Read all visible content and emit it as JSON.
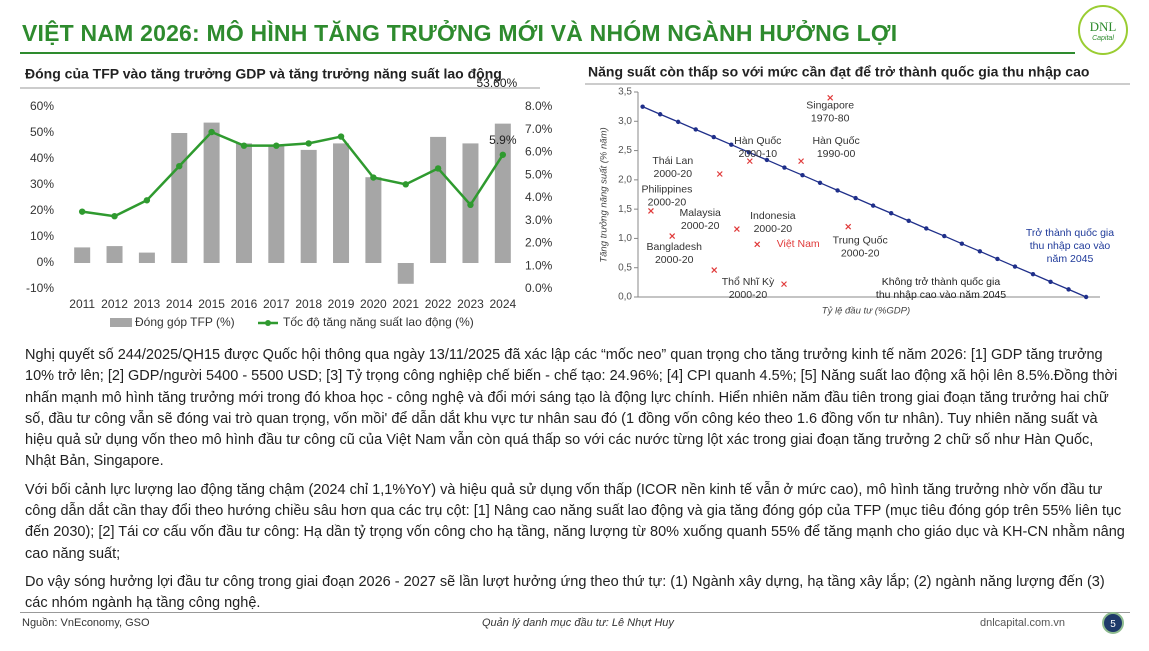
{
  "header": {
    "title": "VIỆT NAM 2026: MÔ HÌNH TĂNG TRƯỞNG MỚI VÀ NHÓM NGÀNH HƯỞNG LỢI",
    "logo": {
      "name": "DNL",
      "sub": "Capital"
    }
  },
  "chart_data": [
    {
      "type": "combo",
      "title": "Đóng của TFP vào tăng trưởng GDP và tăng trưởng năng suất lao động",
      "categories": [
        "2011",
        "2012",
        "2013",
        "2014",
        "2015",
        "2016",
        "2017",
        "2018",
        "2019",
        "2020",
        "2021",
        "2022",
        "2023",
        "2024"
      ],
      "series": [
        {
          "name": "Đóng góp TFP (%)",
          "type": "bar",
          "color": "#a6a6a6",
          "values": [
            6,
            6.5,
            4,
            50,
            54,
            46,
            45,
            43.5,
            46,
            33,
            -8,
            48.5,
            46,
            53.6
          ],
          "value_labels": [
            null,
            null,
            null,
            null,
            null,
            null,
            null,
            null,
            null,
            null,
            null,
            null,
            null,
            "53.60%"
          ]
        },
        {
          "name": "Tốc độ tăng năng suất lao động (%)",
          "type": "line",
          "axis": "y2",
          "color": "#2f9a2f",
          "values": [
            3.4,
            3.2,
            3.9,
            5.4,
            6.9,
            6.3,
            6.3,
            6.4,
            6.7,
            4.9,
            4.6,
            5.3,
            3.7,
            5.9
          ],
          "value_labels": [
            null,
            null,
            null,
            null,
            null,
            null,
            null,
            null,
            null,
            null,
            null,
            null,
            null,
            "5.9%"
          ]
        }
      ],
      "ylim": [
        -10,
        60
      ],
      "yticks": [
        {
          "value": -10,
          "label": "-10%"
        },
        {
          "value": 0,
          "label": "0%"
        },
        {
          "value": 10,
          "label": "10%"
        },
        {
          "value": 20,
          "label": "20%"
        },
        {
          "value": 30,
          "label": "30%"
        },
        {
          "value": 40,
          "label": "40%"
        },
        {
          "value": 50,
          "label": "50%"
        },
        {
          "value": 60,
          "label": "60%"
        }
      ],
      "y2lim": [
        0,
        8
      ],
      "y2ticks": [
        {
          "value": 0,
          "label": "0.0%"
        },
        {
          "value": 1,
          "label": "1.0%"
        },
        {
          "value": 2,
          "label": "2.0%"
        },
        {
          "value": 3,
          "label": "3.0%"
        },
        {
          "value": 4,
          "label": "4.0%"
        },
        {
          "value": 5,
          "label": "5.0%"
        },
        {
          "value": 6,
          "label": "6.0%"
        },
        {
          "value": 7,
          "label": "7.0%"
        },
        {
          "value": 8,
          "label": "8.0%"
        }
      ],
      "grid": false,
      "legend": "bottom"
    },
    {
      "type": "scatter",
      "title": "Năng suất còn thấp so với mức cần đạt để trở thành quốc gia thu nhập cao",
      "x_label": "Tỷ lệ đầu tư (%GDP)",
      "y_label": "Tăng trưởng năng suất (% năm)",
      "xlim": [
        0,
        100
      ],
      "ylim": [
        0,
        3.5
      ],
      "yticks": [
        {
          "value": 0,
          "label": "0,0"
        },
        {
          "value": 0.5,
          "label": "0,5"
        },
        {
          "value": 1,
          "label": "1,0"
        },
        {
          "value": 1.5,
          "label": "1,5"
        },
        {
          "value": 2,
          "label": "2,0"
        },
        {
          "value": 2.5,
          "label": "2,5"
        },
        {
          "value": 3,
          "label": "3,0"
        },
        {
          "value": 3.5,
          "label": "3,5"
        }
      ],
      "grid": false,
      "series": [
        {
          "type": "line",
          "color": "#1f2f8a",
          "x": [
            1,
            4.8,
            8.7,
            12.5,
            16.4,
            20.2,
            24.0,
            27.9,
            31.7,
            35.6,
            39.4,
            43.2,
            47.1,
            50.9,
            54.8,
            58.6,
            62.4,
            66.3,
            70.1,
            74.0,
            77.8,
            81.6,
            85.5,
            89.3,
            93.2,
            97
          ],
          "values": [
            3.25,
            3.12,
            2.99,
            2.86,
            2.73,
            2.6,
            2.47,
            2.34,
            2.21,
            2.08,
            1.95,
            1.82,
            1.69,
            1.56,
            1.43,
            1.3,
            1.17,
            1.04,
            0.91,
            0.78,
            0.65,
            0.52,
            0.39,
            0.26,
            0.13,
            0.0
          ]
        }
      ],
      "point_color": "#e03a3a",
      "points": [
        {
          "label": "Singapore",
          "period": "1970-80",
          "x": 41.6,
          "y": 3.4
        },
        {
          "label": "Hàn Quốc",
          "period": "2000-10",
          "x": 24.2,
          "y": 2.32
        },
        {
          "label": "Hàn Quốc",
          "period": "1990-00",
          "x": 35.3,
          "y": 2.32
        },
        {
          "label": "Thái Lan",
          "period": "2000-20",
          "x": 17.7,
          "y": 2.1
        },
        {
          "label": "Philippines",
          "period": "2000-20",
          "x": 2.8,
          "y": 1.47
        },
        {
          "label": "Malaysia",
          "period": "2000-20",
          "x": 7.4,
          "y": 1.04
        },
        {
          "label": "Indonesia",
          "period": "2000-20",
          "x": 21.4,
          "y": 1.16
        },
        {
          "label": "Việt Nam",
          "x": 25.8,
          "y": 0.9
        },
        {
          "label": "Bangladesh",
          "period": "2000-20",
          "x": 16.5,
          "y": 0.46
        },
        {
          "label": "Thổ Nhĩ Kỳ",
          "period": "2000-20",
          "x": 31.6,
          "y": 0.22
        },
        {
          "label": "Trung Quốc",
          "period": "2000-20",
          "x": 45.5,
          "y": 1.2
        }
      ],
      "annotations": [
        {
          "lines": [
            "Trở thành quốc gia",
            "thu nhập cao vào",
            "năm 2045"
          ],
          "color": "#1f3a9a"
        },
        {
          "lines": [
            "Không trở thành quốc gia",
            "thu nhập cao vào năm 2045"
          ],
          "color": "#222222"
        }
      ]
    }
  ],
  "paragraphs": [
    "Nghị quyết số 244/2025/QH15 được Quốc hội thông qua ngày 13/11/2025 đã xác lập các “mốc neo” quan trọng cho tăng trưởng kinh tế năm 2026: [1] GDP tăng trưởng 10% trở lên; [2] GDP/người 5400 - 5500 USD; [3] Tỷ trọng công nghiệp chế biến - chế tạo: 24.96%; [4] CPI quanh 4.5%; [5] Năng suất lao động xã hội lên 8.5%.Đồng thời nhấn mạnh mô hình tăng trưởng mới trong đó khoa học - công nghệ và đổi mới sáng tạo là động lực chính. Hiển nhiên năm đầu tiên trong giai đoạn tăng trưởng hai chữ số, đầu tư công vẫn sẽ đóng vai trò quan trọng, vốn mồi' để dẫn dắt khu vực tư nhân sau đó (1 đồng vốn công kéo theo 1.6 đồng vốn tư nhân). Tuy nhiên năng suất và hiệu quả sử dụng vốn theo mô hình đầu tư công cũ của Việt Nam vẫn còn quá thấp so với các nước từng lột xác trong giai đoạn tăng trưởng 2 chữ số như Hàn Quốc, Nhật Bản, Singapore.",
    "Với bối cảnh lực lượng lao động tăng chậm (2024 chỉ 1,1%YoY) và hiệu quả sử dụng vốn thấp (ICOR nền kinh tế vẫn ở mức cao), mô hình tăng trưởng nhờ vốn đầu tư công dẫn dắt cần thay đổi theo hướng chiều sâu hơn qua các trụ cột: [1] Nâng cao năng suất lao động và gia tăng đóng góp của TFP (mục tiêu đóng góp trên 55% liên tục đến 2030); [2] Tái cơ cấu vốn đầu tư công: Hạ dần tỷ trọng vốn công cho hạ tầng, năng lượng từ 80% xuống quanh 55% để tăng mạnh cho giáo dục và KH-CN nhằm nâng cao năng suất;",
    "Do vậy sóng hưởng lợi đầu tư công trong giai đoạn 2026 - 2027 sẽ lần lượt hưởng ứng theo thứ tự: (1) Ngành xây dựng, hạ tầng xây lắp; (2) ngành năng lượng đến (3) các nhóm ngành hạ tầng công nghệ."
  ],
  "footer": {
    "source": "Nguồn: VnEconomy, GSO",
    "author": "Quản lý danh mục đầu tư: Lê Nhựt Huy",
    "site": "dnlcapital.com.vn",
    "page": 5
  }
}
